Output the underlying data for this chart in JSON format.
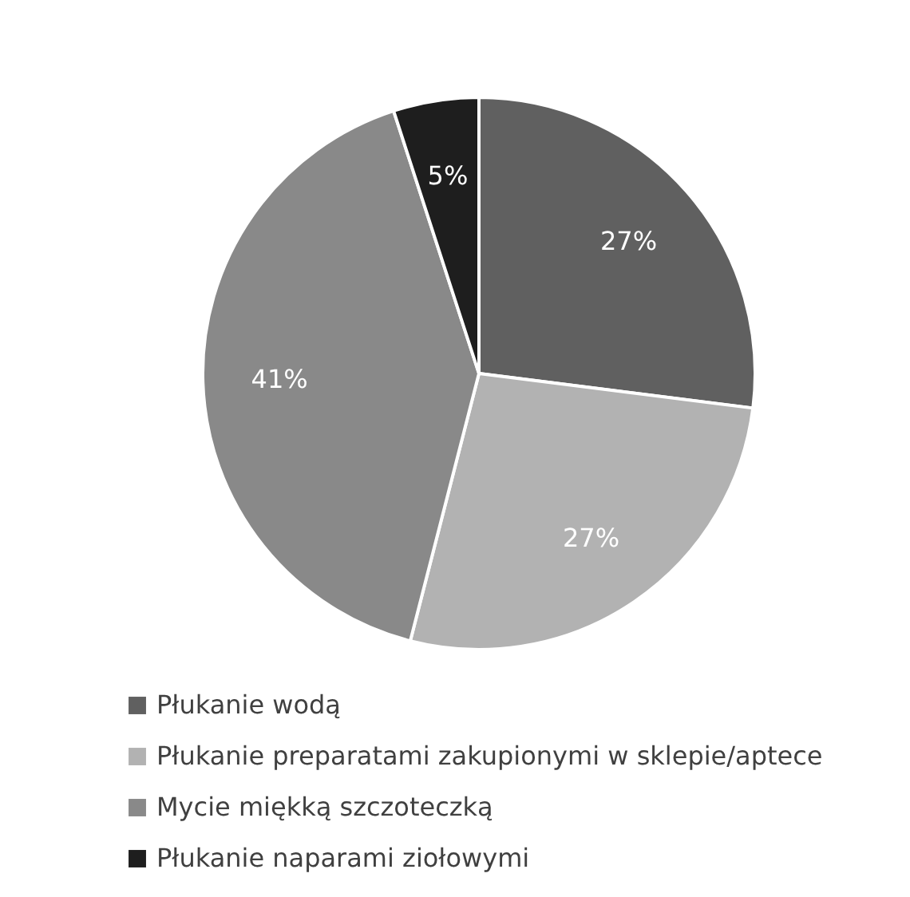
{
  "chart_data": {
    "type": "pie",
    "categories": [
      "Płukanie wodą",
      "Płukanie preparatami zakupionymi w sklepie/aptece",
      "Mycie miękką szczoteczką",
      "Płukanie naparami ziołowymi"
    ],
    "values": [
      27,
      27,
      41,
      5
    ],
    "colors": [
      "#606060",
      "#b2b2b2",
      "#898989",
      "#1e1e1e"
    ],
    "value_labels": [
      "27%",
      "27%",
      "41%",
      "5%"
    ],
    "legend": "bottom"
  }
}
